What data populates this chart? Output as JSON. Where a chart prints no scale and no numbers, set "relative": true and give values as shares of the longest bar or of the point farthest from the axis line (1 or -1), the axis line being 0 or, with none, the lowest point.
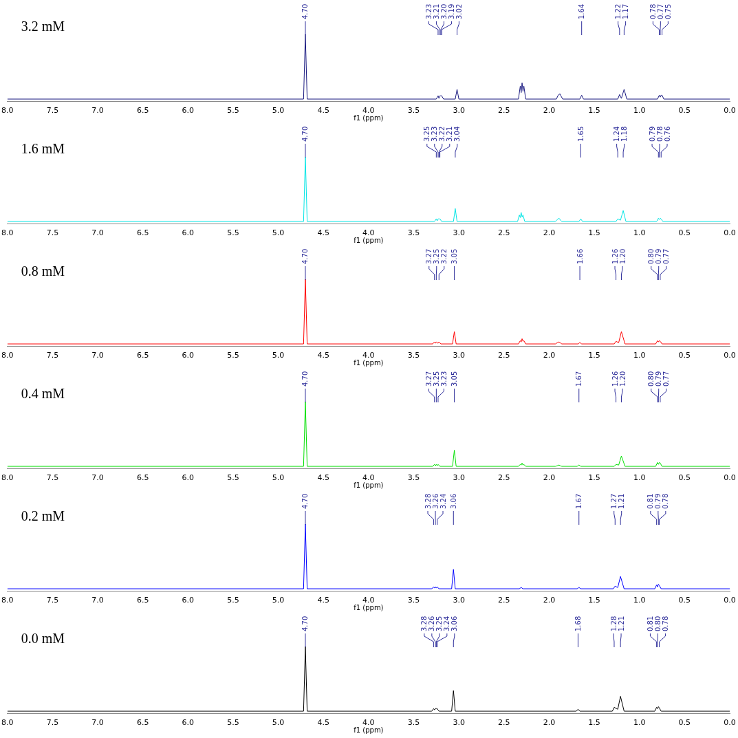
{
  "chart_data": [
    {
      "type": "line",
      "title": "3.2 mM",
      "xlabel": "f1 (ppm)",
      "relative": true,
      "xlim": [
        8.0,
        0.0
      ],
      "xticks": [
        {
          "value": 8,
          "label": "8.0"
        },
        {
          "value": 7.5,
          "label": "7.5"
        },
        {
          "value": 7,
          "label": "7.0"
        },
        {
          "value": 6.5,
          "label": "6.5"
        },
        {
          "value": 6,
          "label": "6.0"
        },
        {
          "value": 5.5,
          "label": "5.5"
        },
        {
          "value": 5,
          "label": "5.0"
        },
        {
          "value": 4.5,
          "label": "4.5"
        },
        {
          "value": 4,
          "label": "4.0"
        },
        {
          "value": 3.5,
          "label": "3.5"
        },
        {
          "value": 3,
          "label": "3.0"
        },
        {
          "value": 2.5,
          "label": "2.5"
        },
        {
          "value": 2,
          "label": "2.0"
        },
        {
          "value": 1.5,
          "label": "1.5"
        },
        {
          "value": 1,
          "label": "1.0"
        },
        {
          "value": 0.5,
          "label": "0.5"
        },
        {
          "value": 0,
          "label": "0.0"
        }
      ],
      "series": [
        {
          "color": "#1a1a80",
          "x": [
            8.0,
            4.72,
            4.7,
            4.68,
            3.25,
            3.23,
            3.22,
            3.21,
            3.2,
            3.19,
            3.17,
            3.04,
            3.02,
            3.0,
            2.34,
            2.32,
            2.31,
            2.3,
            2.29,
            2.28,
            2.26,
            1.92,
            1.9,
            1.88,
            1.87,
            1.85,
            1.66,
            1.64,
            1.62,
            1.24,
            1.22,
            1.2,
            1.17,
            1.14,
            0.8,
            0.78,
            0.77,
            0.76,
            0.75,
            0.73,
            0.0
          ],
          "values": [
            0,
            0,
            1,
            0,
            0,
            0.05,
            0.01,
            0.05,
            0.05,
            0.05,
            0,
            0,
            0.15,
            0,
            0,
            0.2,
            0.1,
            0.25,
            0.12,
            0.2,
            0,
            0,
            0.06,
            0.08,
            0.05,
            0,
            0,
            0.06,
            0,
            0,
            0.07,
            0.01,
            0.15,
            0,
            0,
            0.06,
            0.03,
            0.06,
            0.06,
            0,
            0
          ]
        }
      ],
      "annotations": [
        {
          "text": "4.70",
          "x": 4.7
        },
        {
          "text": "3.23",
          "x": 3.23
        },
        {
          "text": "3.21",
          "x": 3.21
        },
        {
          "text": "3.20",
          "x": 3.2
        },
        {
          "text": "3.19",
          "x": 3.19
        },
        {
          "text": "3.02",
          "x": 3.02
        },
        {
          "text": "1.64",
          "x": 1.64
        },
        {
          "text": "1.22",
          "x": 1.22
        },
        {
          "text": "1.17",
          "x": 1.17
        },
        {
          "text": "0.78",
          "x": 0.78
        },
        {
          "text": "0.77",
          "x": 0.77
        },
        {
          "text": "0.75",
          "x": 0.75
        }
      ]
    },
    {
      "type": "line",
      "title": "1.6 mM",
      "xlabel": "f1 (ppm)",
      "relative": true,
      "xlim": [
        8.0,
        0.0
      ],
      "xticks": [
        {
          "value": 8,
          "label": "8.0"
        },
        {
          "value": 7.5,
          "label": "7.5"
        },
        {
          "value": 7,
          "label": "7.0"
        },
        {
          "value": 6.5,
          "label": "6.5"
        },
        {
          "value": 6,
          "label": "6.0"
        },
        {
          "value": 5.5,
          "label": "5.5"
        },
        {
          "value": 5,
          "label": "5.0"
        },
        {
          "value": 4.5,
          "label": "4.5"
        },
        {
          "value": 4,
          "label": "4.0"
        },
        {
          "value": 3.5,
          "label": "3.5"
        },
        {
          "value": 3,
          "label": "3.0"
        },
        {
          "value": 2.5,
          "label": "2.5"
        },
        {
          "value": 2,
          "label": "2.0"
        },
        {
          "value": 1.5,
          "label": "1.5"
        },
        {
          "value": 1,
          "label": "1.0"
        },
        {
          "value": 0.5,
          "label": "0.5"
        },
        {
          "value": 0,
          "label": "0.0"
        }
      ],
      "series": [
        {
          "color": "#00e5e5",
          "x": [
            8.0,
            4.72,
            4.7,
            4.68,
            3.27,
            3.25,
            3.24,
            3.23,
            3.22,
            3.21,
            3.19,
            3.06,
            3.04,
            3.02,
            2.35,
            2.33,
            2.32,
            2.31,
            2.3,
            2.29,
            2.27,
            1.93,
            1.91,
            1.89,
            1.88,
            1.86,
            1.67,
            1.65,
            1.63,
            1.26,
            1.24,
            1.21,
            1.18,
            1.15,
            0.81,
            0.79,
            0.78,
            0.77,
            0.76,
            0.74,
            0.0
          ],
          "values": [
            0,
            0,
            1,
            0,
            0,
            0.04,
            0.01,
            0.04,
            0.04,
            0.04,
            0,
            0,
            0.2,
            0,
            0,
            0.1,
            0.06,
            0.14,
            0.07,
            0.1,
            0,
            0,
            0.03,
            0.05,
            0.03,
            0,
            0,
            0.04,
            0,
            0,
            0.04,
            0.02,
            0.17,
            0,
            0,
            0.05,
            0.03,
            0.05,
            0.04,
            0,
            0
          ]
        }
      ],
      "annotations": [
        {
          "text": "4.70",
          "x": 4.7
        },
        {
          "text": "3.25",
          "x": 3.25
        },
        {
          "text": "3.23",
          "x": 3.23
        },
        {
          "text": "3.22",
          "x": 3.22
        },
        {
          "text": "3.21",
          "x": 3.21
        },
        {
          "text": "3.04",
          "x": 3.04
        },
        {
          "text": "1.65",
          "x": 1.65
        },
        {
          "text": "1.24",
          "x": 1.24
        },
        {
          "text": "1.18",
          "x": 1.18
        },
        {
          "text": "0.79",
          "x": 0.79
        },
        {
          "text": "0.78",
          "x": 0.78
        },
        {
          "text": "0.76",
          "x": 0.76
        }
      ]
    },
    {
      "type": "line",
      "title": "0.8 mM",
      "xlabel": "f1 (ppm)",
      "relative": true,
      "xlim": [
        8.0,
        0.0
      ],
      "xticks": [
        {
          "value": 8,
          "label": "8.0"
        },
        {
          "value": 7.5,
          "label": "7.5"
        },
        {
          "value": 7,
          "label": "7.0"
        },
        {
          "value": 6.5,
          "label": "6.5"
        },
        {
          "value": 6,
          "label": "6.0"
        },
        {
          "value": 5.5,
          "label": "5.5"
        },
        {
          "value": 5,
          "label": "5.0"
        },
        {
          "value": 4.5,
          "label": "4.5"
        },
        {
          "value": 4,
          "label": "4.0"
        },
        {
          "value": 3.5,
          "label": "3.5"
        },
        {
          "value": 3,
          "label": "3.0"
        },
        {
          "value": 2.5,
          "label": "2.5"
        },
        {
          "value": 2,
          "label": "2.0"
        },
        {
          "value": 1.5,
          "label": "1.5"
        },
        {
          "value": 1,
          "label": "1.0"
        },
        {
          "value": 0.5,
          "label": "0.5"
        },
        {
          "value": 0,
          "label": "0.0"
        }
      ],
      "series": [
        {
          "color": "#ff0000",
          "x": [
            8.0,
            4.72,
            4.7,
            4.68,
            3.29,
            3.27,
            3.26,
            3.25,
            3.23,
            3.22,
            3.2,
            3.07,
            3.05,
            3.03,
            2.34,
            2.32,
            2.31,
            2.3,
            2.29,
            2.28,
            2.26,
            1.93,
            1.91,
            1.89,
            1.88,
            1.86,
            1.68,
            1.66,
            1.64,
            1.28,
            1.26,
            1.23,
            1.2,
            1.16,
            0.82,
            0.8,
            0.79,
            0.78,
            0.77,
            0.75,
            0.0
          ],
          "values": [
            0,
            0,
            1,
            0,
            0,
            0.03,
            0.01,
            0.03,
            0.01,
            0.03,
            0,
            0,
            0.19,
            0,
            0,
            0.05,
            0.03,
            0.08,
            0.04,
            0.05,
            0,
            0,
            0.02,
            0.03,
            0.02,
            0,
            0,
            0.02,
            0,
            0,
            0.04,
            0.02,
            0.19,
            0,
            0,
            0.05,
            0.03,
            0.05,
            0.04,
            0,
            0
          ]
        }
      ],
      "annotations": [
        {
          "text": "4.70",
          "x": 4.7
        },
        {
          "text": "3.27",
          "x": 3.27
        },
        {
          "text": "3.25",
          "x": 3.25
        },
        {
          "text": "3.22",
          "x": 3.22
        },
        {
          "text": "3.05",
          "x": 3.05
        },
        {
          "text": "1.66",
          "x": 1.66
        },
        {
          "text": "1.26",
          "x": 1.26
        },
        {
          "text": "1.20",
          "x": 1.2
        },
        {
          "text": "0.80",
          "x": 0.8
        },
        {
          "text": "0.79",
          "x": 0.79
        },
        {
          "text": "0.77",
          "x": 0.77
        }
      ]
    },
    {
      "type": "line",
      "title": "0.4 mM",
      "xlabel": "f1 (ppm)",
      "relative": true,
      "xlim": [
        8.0,
        0.0
      ],
      "xticks": [
        {
          "value": 8,
          "label": "8.0"
        },
        {
          "value": 7.5,
          "label": "7.5"
        },
        {
          "value": 7,
          "label": "7.0"
        },
        {
          "value": 6.5,
          "label": "6.5"
        },
        {
          "value": 6,
          "label": "6.0"
        },
        {
          "value": 5.5,
          "label": "5.5"
        },
        {
          "value": 5,
          "label": "5.0"
        },
        {
          "value": 4.5,
          "label": "4.5"
        },
        {
          "value": 4,
          "label": "4.0"
        },
        {
          "value": 3.5,
          "label": "3.5"
        },
        {
          "value": 3,
          "label": "3.0"
        },
        {
          "value": 2.5,
          "label": "2.5"
        },
        {
          "value": 2,
          "label": "2.0"
        },
        {
          "value": 1.5,
          "label": "1.5"
        },
        {
          "value": 1,
          "label": "1.0"
        },
        {
          "value": 0.5,
          "label": "0.5"
        },
        {
          "value": 0,
          "label": "0.0"
        }
      ],
      "series": [
        {
          "color": "#00e000",
          "x": [
            8.0,
            4.72,
            4.7,
            4.68,
            3.29,
            3.27,
            3.26,
            3.25,
            3.24,
            3.23,
            3.21,
            3.07,
            3.05,
            3.03,
            2.34,
            2.32,
            2.31,
            2.3,
            2.29,
            2.28,
            2.26,
            1.93,
            1.91,
            1.89,
            1.88,
            1.86,
            1.69,
            1.67,
            1.65,
            1.28,
            1.26,
            1.23,
            1.2,
            1.16,
            0.82,
            0.8,
            0.79,
            0.78,
            0.77,
            0.75,
            0.0
          ],
          "values": [
            0,
            0,
            1,
            0,
            0,
            0.03,
            0.01,
            0.03,
            0.01,
            0.03,
            0,
            0,
            0.25,
            0,
            0,
            0.03,
            0.02,
            0.05,
            0.02,
            0.03,
            0,
            0,
            0.01,
            0.02,
            0.01,
            0,
            0,
            0.02,
            0,
            0,
            0.03,
            0.02,
            0.16,
            0,
            0,
            0.06,
            0.03,
            0.06,
            0.05,
            0,
            0
          ]
        }
      ],
      "annotations": [
        {
          "text": "4.70",
          "x": 4.7
        },
        {
          "text": "3.27",
          "x": 3.27
        },
        {
          "text": "3.25",
          "x": 3.25
        },
        {
          "text": "3.23",
          "x": 3.23
        },
        {
          "text": "3.05",
          "x": 3.05
        },
        {
          "text": "1.67",
          "x": 1.67
        },
        {
          "text": "1.26",
          "x": 1.26
        },
        {
          "text": "1.20",
          "x": 1.2
        },
        {
          "text": "0.80",
          "x": 0.8
        },
        {
          "text": "0.79",
          "x": 0.79
        },
        {
          "text": "0.77",
          "x": 0.77
        }
      ]
    },
    {
      "type": "line",
      "title": "0.2 mM",
      "xlabel": "f1 (ppm)",
      "relative": true,
      "xlim": [
        8.0,
        0.0
      ],
      "xticks": [
        {
          "value": 8,
          "label": "8.0"
        },
        {
          "value": 7.5,
          "label": "7.5"
        },
        {
          "value": 7,
          "label": "7.0"
        },
        {
          "value": 6.5,
          "label": "6.5"
        },
        {
          "value": 6,
          "label": "6.0"
        },
        {
          "value": 5.5,
          "label": "5.5"
        },
        {
          "value": 5,
          "label": "5.0"
        },
        {
          "value": 4.5,
          "label": "4.5"
        },
        {
          "value": 4,
          "label": "4.0"
        },
        {
          "value": 3.5,
          "label": "3.5"
        },
        {
          "value": 3,
          "label": "3.0"
        },
        {
          "value": 2.5,
          "label": "2.5"
        },
        {
          "value": 2,
          "label": "2.0"
        },
        {
          "value": 1.5,
          "label": "1.5"
        },
        {
          "value": 1,
          "label": "1.0"
        },
        {
          "value": 0.5,
          "label": "0.5"
        },
        {
          "value": 0,
          "label": "0.0"
        }
      ],
      "series": [
        {
          "color": "#0000ff",
          "x": [
            8.0,
            4.72,
            4.7,
            4.68,
            3.3,
            3.28,
            3.27,
            3.26,
            3.25,
            3.24,
            3.22,
            3.08,
            3.06,
            3.04,
            2.33,
            2.31,
            2.29,
            1.69,
            1.67,
            1.65,
            1.29,
            1.27,
            1.24,
            1.21,
            1.17,
            0.83,
            0.81,
            0.8,
            0.79,
            0.78,
            0.76,
            0.0
          ],
          "values": [
            0,
            0,
            1,
            0,
            0,
            0.03,
            0.01,
            0.03,
            0.01,
            0.03,
            0,
            0,
            0.3,
            0,
            0,
            0.02,
            0,
            0,
            0.02,
            0,
            0,
            0.04,
            0.02,
            0.19,
            0,
            0,
            0.06,
            0.03,
            0.07,
            0.05,
            0,
            0
          ]
        }
      ],
      "annotations": [
        {
          "text": "4.70",
          "x": 4.7
        },
        {
          "text": "3.28",
          "x": 3.28
        },
        {
          "text": "3.26",
          "x": 3.26
        },
        {
          "text": "3.24",
          "x": 3.24
        },
        {
          "text": "3.06",
          "x": 3.06
        },
        {
          "text": "1.67",
          "x": 1.67
        },
        {
          "text": "1.27",
          "x": 1.27
        },
        {
          "text": "1.21",
          "x": 1.21
        },
        {
          "text": "0.81",
          "x": 0.81
        },
        {
          "text": "0.79",
          "x": 0.79
        },
        {
          "text": "0.78",
          "x": 0.78
        }
      ]
    },
    {
      "type": "line",
      "title": "0.0 mM",
      "xlabel": "f1 (ppm)",
      "relative": true,
      "xlim": [
        8.0,
        0.0
      ],
      "xticks": [
        {
          "value": 8,
          "label": "8.0"
        },
        {
          "value": 7.5,
          "label": "7.5"
        },
        {
          "value": 7,
          "label": "7.0"
        },
        {
          "value": 6.5,
          "label": "6.5"
        },
        {
          "value": 6,
          "label": "6.0"
        },
        {
          "value": 5.5,
          "label": "5.5"
        },
        {
          "value": 5,
          "label": "5.0"
        },
        {
          "value": 4.5,
          "label": "4.5"
        },
        {
          "value": 4,
          "label": "4.0"
        },
        {
          "value": 3.5,
          "label": "3.5"
        },
        {
          "value": 3,
          "label": "3.0"
        },
        {
          "value": 2.5,
          "label": "2.5"
        },
        {
          "value": 2,
          "label": "2.0"
        },
        {
          "value": 1.5,
          "label": "1.5"
        },
        {
          "value": 1,
          "label": "1.0"
        },
        {
          "value": 0.5,
          "label": "0.5"
        },
        {
          "value": 0,
          "label": "0.0"
        }
      ],
      "series": [
        {
          "color": "#000000",
          "x": [
            8.0,
            4.72,
            4.7,
            4.68,
            3.3,
            3.28,
            3.27,
            3.26,
            3.25,
            3.24,
            3.22,
            3.08,
            3.06,
            3.04,
            1.7,
            1.68,
            1.66,
            1.3,
            1.28,
            1.24,
            1.21,
            1.17,
            0.83,
            0.81,
            0.8,
            0.79,
            0.78,
            0.76,
            0.0
          ],
          "values": [
            0,
            0,
            1,
            0,
            0,
            0.04,
            0.02,
            0.04,
            0.04,
            0.04,
            0,
            0,
            0.32,
            0,
            0,
            0.03,
            0,
            0,
            0.06,
            0.03,
            0.23,
            0,
            0,
            0.06,
            0.04,
            0.07,
            0.05,
            0,
            0
          ]
        }
      ],
      "annotations": [
        {
          "text": "4.70",
          "x": 4.7
        },
        {
          "text": "3.28",
          "x": 3.28
        },
        {
          "text": "3.26",
          "x": 3.26
        },
        {
          "text": "3.25",
          "x": 3.25
        },
        {
          "text": "3.24",
          "x": 3.24
        },
        {
          "text": "3.06",
          "x": 3.06
        },
        {
          "text": "1.68",
          "x": 1.68
        },
        {
          "text": "1.28",
          "x": 1.28
        },
        {
          "text": "1.21",
          "x": 1.21
        },
        {
          "text": "0.81",
          "x": 0.81
        },
        {
          "text": "0.80",
          "x": 0.8
        },
        {
          "text": "0.78",
          "x": 0.78
        }
      ]
    }
  ]
}
